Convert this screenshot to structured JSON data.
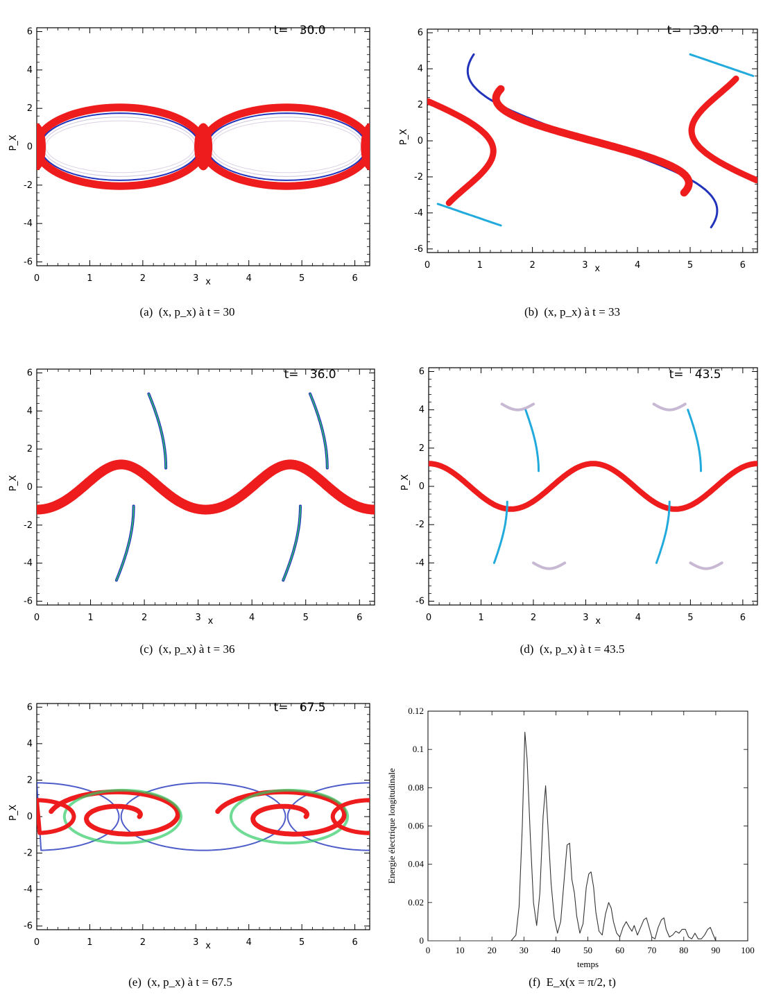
{
  "panels": [
    {
      "id": "a",
      "title_prefix": "t=",
      "title_value": "30.0",
      "caption_tag": "(a)",
      "caption_math": "(x, p_x) à t = 30",
      "x_label": "x",
      "y_label": "P_X"
    },
    {
      "id": "b",
      "title_prefix": "t=",
      "title_value": "33.0",
      "caption_tag": "(b)",
      "caption_math": "(x, p_x) à t = 33",
      "x_label": "x",
      "y_label": "P_X"
    },
    {
      "id": "c",
      "title_prefix": "t=",
      "title_value": "36.0",
      "caption_tag": "(c)",
      "caption_math": "(x, p_x) à t = 36",
      "x_label": "x",
      "y_label": "P_X"
    },
    {
      "id": "d",
      "title_prefix": "t=",
      "title_value": "43.5",
      "caption_tag": "(d)",
      "caption_math": "(x, p_x) à t = 43.5",
      "x_label": "x",
      "y_label": "P_X"
    },
    {
      "id": "e",
      "title_prefix": "t=",
      "title_value": "67.5",
      "caption_tag": "(e)",
      "caption_math": "(x, p_x) à t = 67.5",
      "x_label": "x",
      "y_label": "P_X"
    }
  ],
  "phase_axes": {
    "x_ticks": [
      "0",
      "1",
      "2",
      "3",
      "4",
      "5",
      "6"
    ],
    "y_ticks": [
      "6",
      "4",
      "2",
      "0",
      "-2",
      "-4",
      "-6"
    ],
    "xlim": [
      0,
      6.28
    ],
    "ylim": [
      -6.2,
      6.2
    ]
  },
  "colors": {
    "core": "#ee1c1c",
    "edge_blue": "#2233bb",
    "edge_green": "#33cc66",
    "edge_cyan": "#22aadd",
    "faint": "#b9a6c9"
  },
  "chart_data": {
    "type": "line",
    "caption_tag": "(f)",
    "caption_math": "E_x(x = π/2, t)",
    "xlabel": "temps",
    "ylabel": "Energie électrique longitudinale",
    "xlim": [
      0,
      100
    ],
    "ylim": [
      0,
      0.12
    ],
    "x_ticks": [
      0,
      10,
      20,
      30,
      40,
      50,
      60,
      70,
      80,
      90,
      100
    ],
    "y_ticks": [
      0,
      0.02,
      0.04,
      0.06,
      0.08,
      0.1,
      0.12
    ],
    "y_tick_labels": [
      "0",
      "0.02",
      "0.04",
      "0.06",
      "0.08",
      "0.1",
      "0.12"
    ],
    "series": [
      {
        "x": [
          0,
          10,
          20,
          26,
          27.5,
          28.5,
          29.5,
          30.3,
          31,
          32,
          33,
          34,
          35,
          36,
          36.8,
          37.5,
          38.5,
          39.5,
          40.5,
          41.5,
          42.5,
          43.5,
          44.3,
          45,
          45.8,
          46.5,
          47.5,
          48.5,
          49.5,
          50.3,
          51,
          51.8,
          52.5,
          53.5,
          54.5,
          55.5,
          56.5,
          57.3,
          58,
          59,
          60,
          61,
          62,
          63,
          63.8,
          64.5,
          65.5,
          66.5,
          67.5,
          68.3,
          69,
          70,
          71,
          72,
          73,
          73.8,
          74.5,
          75.5,
          76.5,
          77.5,
          78.5,
          79.5,
          80.5,
          81.5,
          82.5,
          83.5,
          84.5,
          85.5,
          86.5,
          87.5,
          88.3,
          89,
          90
        ],
        "y": [
          0,
          0,
          0,
          0,
          0.003,
          0.018,
          0.06,
          0.109,
          0.095,
          0.055,
          0.02,
          0.008,
          0.025,
          0.065,
          0.081,
          0.06,
          0.03,
          0.012,
          0.004,
          0.01,
          0.03,
          0.05,
          0.051,
          0.032,
          0.025,
          0.013,
          0.004,
          0.009,
          0.028,
          0.035,
          0.036,
          0.028,
          0.015,
          0.005,
          0.003,
          0.014,
          0.02,
          0.017,
          0.01,
          0.004,
          0.002,
          0.007,
          0.01,
          0.007,
          0.005,
          0.008,
          0.003,
          0.007,
          0.011,
          0.012,
          0.008,
          0.002,
          0.001,
          0.007,
          0.011,
          0.012,
          0.006,
          0.002,
          0.003,
          0.005,
          0.004,
          0.006,
          0.006,
          0.002,
          0.001,
          0.004,
          0.001,
          0.001,
          0.003,
          0.006,
          0.007,
          0.004,
          0
        ]
      }
    ]
  }
}
